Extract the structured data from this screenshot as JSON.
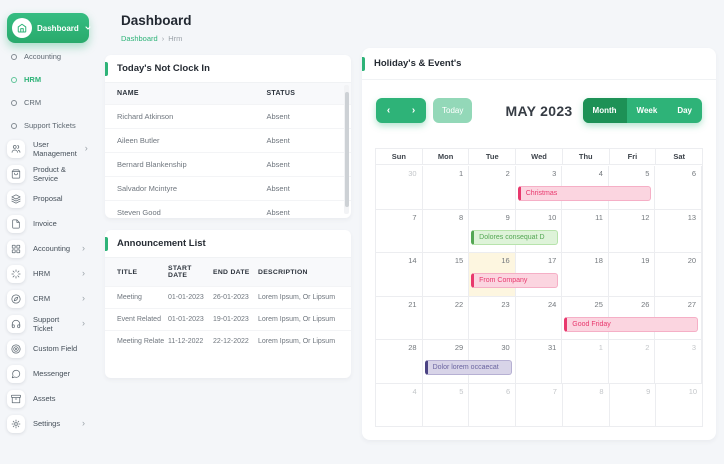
{
  "colors": {
    "primary_green": "#2eb378",
    "active_view_green": "#1d9156",
    "event_pink_accent": "#e8386d",
    "event_pink_bg": "#fbd5e0",
    "event_green_accent": "#54a754",
    "event_green_bg": "#def3d9",
    "event_purple_accent": "#4b4383",
    "event_purple_bg": "#d8d4e8",
    "today_cell_bg": "#fdf6e0"
  },
  "sidebar": {
    "dashboard_label": "Dashboard",
    "sub_items": [
      {
        "label": "Accounting",
        "active": false
      },
      {
        "label": "HRM",
        "active": true
      },
      {
        "label": "CRM",
        "active": false
      },
      {
        "label": "Support Tickets",
        "active": false
      }
    ],
    "items": [
      {
        "label": "User Management",
        "icon": "users-icon",
        "chevron": true
      },
      {
        "label": "Product & Service",
        "icon": "shopping-bag-icon",
        "chevron": false
      },
      {
        "label": "Proposal",
        "icon": "layers-icon",
        "chevron": false
      },
      {
        "label": "Invoice",
        "icon": "file-icon",
        "chevron": false
      },
      {
        "label": "Accounting",
        "icon": "grid-icon",
        "chevron": true
      },
      {
        "label": "HRM",
        "icon": "loader-icon",
        "chevron": true
      },
      {
        "label": "CRM",
        "icon": "compass-icon",
        "chevron": true
      },
      {
        "label": "Support Ticket",
        "icon": "headphones-icon",
        "chevron": true
      },
      {
        "label": "Custom Field",
        "icon": "target-icon",
        "chevron": false
      },
      {
        "label": "Messenger",
        "icon": "message-icon",
        "chevron": false
      },
      {
        "label": "Assets",
        "icon": "archive-icon",
        "chevron": false
      },
      {
        "label": "Settings",
        "icon": "gear-icon",
        "chevron": true
      }
    ]
  },
  "header": {
    "title": "Dashboard",
    "breadcrumb_root": "Dashboard",
    "breadcrumb_separator": "›",
    "breadcrumb_current": "Hrm"
  },
  "clockin_card": {
    "title": "Today's Not Clock In",
    "columns": [
      "NAME",
      "STATUS"
    ],
    "rows": [
      [
        "Richard Atkinson",
        "Absent"
      ],
      [
        "Aileen Butler",
        "Absent"
      ],
      [
        "Bernard Blankenship",
        "Absent"
      ],
      [
        "Salvador Mcintyre",
        "Absent"
      ],
      [
        "Steven Good",
        "Absent"
      ]
    ]
  },
  "announcement_card": {
    "title": "Announcement List",
    "columns": [
      "TITLE",
      "START DATE",
      "END DATE",
      "DESCRIPTION"
    ],
    "rows": [
      [
        "Meeting",
        "01-01-2023",
        "26-01-2023",
        "Lorem Ipsum, Or Lipsum"
      ],
      [
        "Event Related",
        "01-01-2023",
        "19-01-2023",
        "Lorem Ipsum, Or Lipsum"
      ],
      [
        "Meeting Related",
        "11-12-2022",
        "22-12-2022",
        "Lorem Ipsum, Or Lipsum"
      ]
    ]
  },
  "calendar": {
    "card_title": "Holiday's & Event's",
    "toolbar": {
      "prev": "‹",
      "next": "›",
      "today_label": "Today",
      "title": "MAY 2023",
      "views": [
        "Month",
        "Week",
        "Day"
      ],
      "active_view": "Month"
    },
    "day_headers": [
      "Sun",
      "Mon",
      "Tue",
      "Wed",
      "Thu",
      "Fri",
      "Sat"
    ],
    "weeks": [
      [
        {
          "d": 30,
          "muted": true
        },
        {
          "d": 1
        },
        {
          "d": 2
        },
        {
          "d": 3
        },
        {
          "d": 4
        },
        {
          "d": 5
        },
        {
          "d": 6
        }
      ],
      [
        {
          "d": 7
        },
        {
          "d": 8
        },
        {
          "d": 9
        },
        {
          "d": 10
        },
        {
          "d": 11
        },
        {
          "d": 12
        },
        {
          "d": 13
        }
      ],
      [
        {
          "d": 14
        },
        {
          "d": 15
        },
        {
          "d": 16,
          "today": true
        },
        {
          "d": 17
        },
        {
          "d": 18
        },
        {
          "d": 19
        },
        {
          "d": 20
        }
      ],
      [
        {
          "d": 21
        },
        {
          "d": 22
        },
        {
          "d": 23
        },
        {
          "d": 24
        },
        {
          "d": 25
        },
        {
          "d": 26
        },
        {
          "d": 27
        }
      ],
      [
        {
          "d": 28
        },
        {
          "d": 29
        },
        {
          "d": 30
        },
        {
          "d": 31
        },
        {
          "d": 1,
          "muted": true
        },
        {
          "d": 2,
          "muted": true
        },
        {
          "d": 3,
          "muted": true
        }
      ],
      [
        {
          "d": 4,
          "muted": true
        },
        {
          "d": 5,
          "muted": true
        },
        {
          "d": 6,
          "muted": true
        },
        {
          "d": 7,
          "muted": true
        },
        {
          "d": 8,
          "muted": true
        },
        {
          "d": 9,
          "muted": true
        },
        {
          "d": 10,
          "muted": true
        }
      ]
    ],
    "events": [
      {
        "label": "Christmas",
        "week": 0,
        "col": 3,
        "span": 3,
        "variant": "pink"
      },
      {
        "label": "Dolores consequat D",
        "week": 1,
        "col": 2,
        "span": 2,
        "variant": "green"
      },
      {
        "label": "From Company",
        "week": 2,
        "col": 2,
        "span": 2,
        "variant": "pink"
      },
      {
        "label": "Good Friday",
        "week": 3,
        "col": 4,
        "span": 3,
        "variant": "pink"
      },
      {
        "label": "Dolor lorem occaecat",
        "week": 4,
        "col": 1,
        "span": 2,
        "variant": "purple"
      }
    ]
  }
}
